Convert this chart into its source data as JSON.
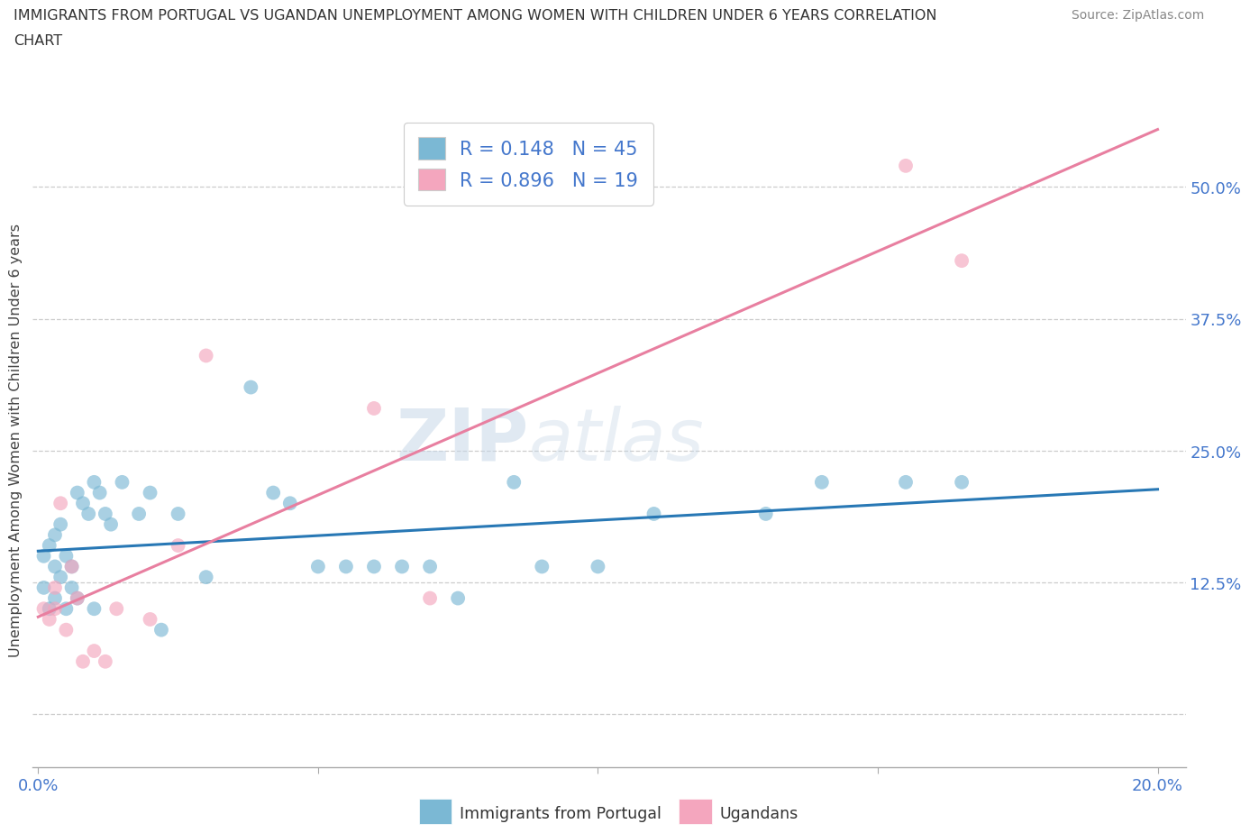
{
  "title_line1": "IMMIGRANTS FROM PORTUGAL VS UGANDAN UNEMPLOYMENT AMONG WOMEN WITH CHILDREN UNDER 6 YEARS CORRELATION",
  "title_line2": "CHART",
  "source": "Source: ZipAtlas.com",
  "ylabel": "Unemployment Among Women with Children Under 6 years",
  "xlim": [
    -0.001,
    0.205
  ],
  "ylim": [
    -0.05,
    0.57
  ],
  "xticks": [
    0.0,
    0.05,
    0.1,
    0.15,
    0.2
  ],
  "xtick_labels": [
    "0.0%",
    "",
    "",
    "",
    "20.0%"
  ],
  "ytick_positions": [
    0.0,
    0.125,
    0.25,
    0.375,
    0.5
  ],
  "ytick_labels": [
    "",
    "12.5%",
    "25.0%",
    "37.5%",
    "50.0%"
  ],
  "R_blue": 0.148,
  "N_blue": 45,
  "R_pink": 0.896,
  "N_pink": 19,
  "blue_color": "#7bb8d4",
  "pink_color": "#f4a6be",
  "blue_line_color": "#2878b5",
  "pink_line_color": "#e87fa0",
  "text_color": "#4477cc",
  "watermark_zip": "ZIP",
  "watermark_atlas": "atlas",
  "blue_scatter_x": [
    0.001,
    0.001,
    0.002,
    0.002,
    0.003,
    0.003,
    0.003,
    0.004,
    0.004,
    0.005,
    0.005,
    0.006,
    0.006,
    0.007,
    0.007,
    0.008,
    0.009,
    0.01,
    0.01,
    0.011,
    0.012,
    0.013,
    0.015,
    0.018,
    0.02,
    0.022,
    0.025,
    0.03,
    0.038,
    0.042,
    0.045,
    0.05,
    0.055,
    0.06,
    0.065,
    0.07,
    0.075,
    0.085,
    0.09,
    0.1,
    0.11,
    0.13,
    0.14,
    0.155,
    0.165
  ],
  "blue_scatter_y": [
    0.12,
    0.15,
    0.1,
    0.16,
    0.14,
    0.11,
    0.17,
    0.13,
    0.18,
    0.1,
    0.15,
    0.12,
    0.14,
    0.11,
    0.21,
    0.2,
    0.19,
    0.22,
    0.1,
    0.21,
    0.19,
    0.18,
    0.22,
    0.19,
    0.21,
    0.08,
    0.19,
    0.13,
    0.31,
    0.21,
    0.2,
    0.14,
    0.14,
    0.14,
    0.14,
    0.14,
    0.11,
    0.22,
    0.14,
    0.14,
    0.19,
    0.19,
    0.22,
    0.22,
    0.22
  ],
  "pink_scatter_x": [
    0.001,
    0.002,
    0.003,
    0.003,
    0.004,
    0.005,
    0.006,
    0.007,
    0.008,
    0.01,
    0.012,
    0.014,
    0.02,
    0.025,
    0.03,
    0.06,
    0.07,
    0.155,
    0.165
  ],
  "pink_scatter_y": [
    0.1,
    0.09,
    0.1,
    0.12,
    0.2,
    0.08,
    0.14,
    0.11,
    0.05,
    0.06,
    0.05,
    0.1,
    0.09,
    0.16,
    0.34,
    0.29,
    0.11,
    0.52,
    0.43
  ]
}
